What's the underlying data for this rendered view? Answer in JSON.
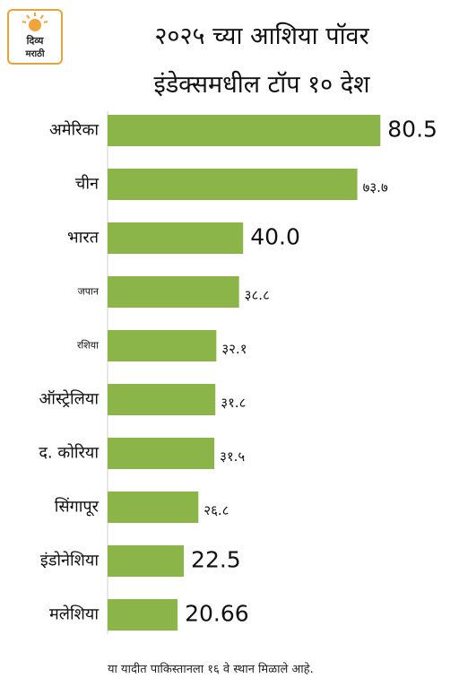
{
  "logo": {
    "line1": "दिव्य",
    "line2": "मराठी"
  },
  "title_line1": "२०२५ च्या आशिया पॉवर",
  "title_line2": "इंडेक्समधील टॉप १० देश",
  "chart_data": {
    "type": "bar",
    "orientation": "horizontal",
    "categories": [
      "अमेरिका",
      "चीन",
      "भारत",
      "जपान",
      "रशिया",
      "ऑस्ट्रेलिया",
      "द. कोरिया",
      "सिंगापूर",
      "इंडोनेशिया",
      "मलेशिया"
    ],
    "values": [
      80.5,
      73.7,
      40.0,
      38.8,
      32.1,
      31.8,
      31.5,
      26.8,
      22.5,
      20.66
    ],
    "value_labels": [
      "80.5",
      "७३.७",
      "40.0",
      "३८.८",
      "३२.१",
      "३१.८",
      "३१.५",
      "२६.८",
      "22.5",
      "20.66"
    ],
    "label_sizes": [
      "large",
      "small",
      "large",
      "small",
      "small",
      "small",
      "small",
      "small",
      "large",
      "large"
    ],
    "category_sizes": [
      "normal",
      "normal",
      "normal",
      "small",
      "small",
      "normal",
      "normal",
      "normal",
      "normal",
      "normal"
    ],
    "bar_color": "#8bb548",
    "xlim": [
      0,
      100
    ],
    "grid": false,
    "legend": "none"
  },
  "footnote": "या यादीत पाकिस्तानला १६ वे स्थान मिळाले आहे."
}
